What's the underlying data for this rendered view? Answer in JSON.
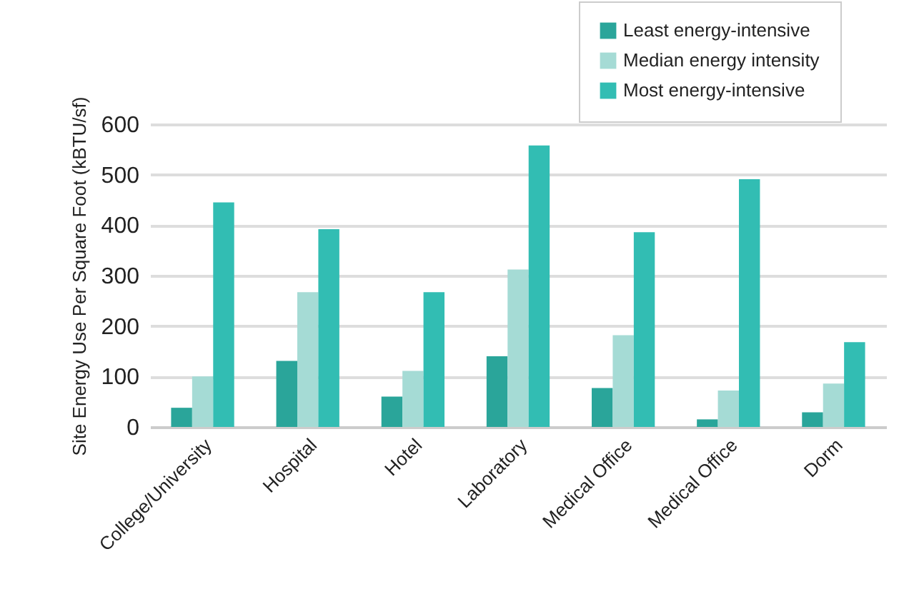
{
  "chart_data": {
    "type": "bar",
    "ylabel": "Site Energy Use Per Square Foot (kBTU/sf)",
    "categories": [
      "College/University",
      "Hospital",
      "Hotel",
      "Laboratory",
      "Medical Office",
      "Medical Office",
      "Dorm"
    ],
    "series": [
      {
        "name": "Least energy-intensive",
        "color": "#2aa59a",
        "values": [
          38,
          131,
          60,
          140,
          77,
          15,
          29
        ]
      },
      {
        "name": "Median energy intensity",
        "color": "#a5dbd5",
        "values": [
          100,
          267,
          111,
          312,
          182,
          72,
          86
        ]
      },
      {
        "name": "Most energy-intensive",
        "color": "#32bdb3",
        "values": [
          445,
          392,
          267,
          558,
          386,
          491,
          168
        ]
      }
    ],
    "ylim": [
      0,
      600
    ],
    "yticks": [
      0,
      100,
      200,
      300,
      400,
      500,
      600
    ],
    "grid": "y",
    "legend": "top right"
  }
}
